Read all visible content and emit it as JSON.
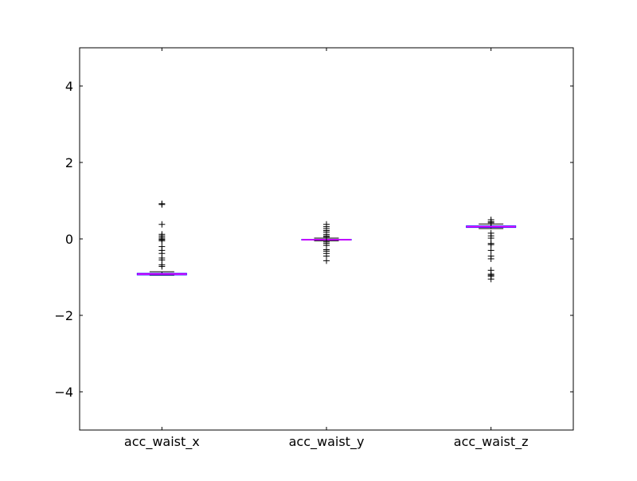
{
  "chart_data": {
    "type": "box",
    "title": "",
    "xlabel": "",
    "ylabel": "",
    "ylim": [
      -5,
      5
    ],
    "yticks": [
      -4,
      -2,
      0,
      2,
      4
    ],
    "ytick_labels": [
      "−4",
      "−2",
      "0",
      "2",
      "4"
    ],
    "grid": false,
    "colors": {
      "box": "#0000ff",
      "median": "#ff00ff",
      "whisker": "#000000",
      "flier": "#000000"
    },
    "categories": [
      "acc_waist_x",
      "acc_waist_y",
      "acc_waist_z"
    ],
    "boxes": [
      {
        "label": "acc_waist_x",
        "whisker_low": -0.95,
        "q1": -0.94,
        "median": -0.92,
        "q3": -0.9,
        "whisker_high": -0.86,
        "fliers": [
          0.92,
          0.9,
          0.38,
          0.12,
          0.08,
          0.04,
          0.0,
          -0.02,
          -0.05,
          -0.2,
          -0.3,
          -0.38,
          -0.5,
          -0.55,
          -0.68,
          -0.72
        ]
      },
      {
        "label": "acc_waist_y",
        "whisker_low": -0.05,
        "q1": -0.03,
        "median": -0.02,
        "q3": -0.01,
        "whisker_high": 0.02,
        "fliers": [
          0.38,
          0.32,
          0.27,
          0.22,
          0.18,
          0.12,
          0.08,
          0.05,
          -0.08,
          -0.12,
          -0.17,
          -0.28,
          -0.32,
          -0.38,
          -0.45,
          -0.57
        ]
      },
      {
        "label": "acc_waist_z",
        "whisker_low": 0.27,
        "q1": 0.3,
        "median": 0.32,
        "q3": 0.34,
        "whisker_high": 0.39,
        "fliers": [
          0.5,
          0.45,
          0.42,
          0.15,
          0.08,
          0.02,
          -0.12,
          -0.15,
          -0.3,
          -0.45,
          -0.52,
          -0.82,
          -0.92,
          -0.95,
          -0.98,
          -1.05
        ]
      }
    ]
  }
}
